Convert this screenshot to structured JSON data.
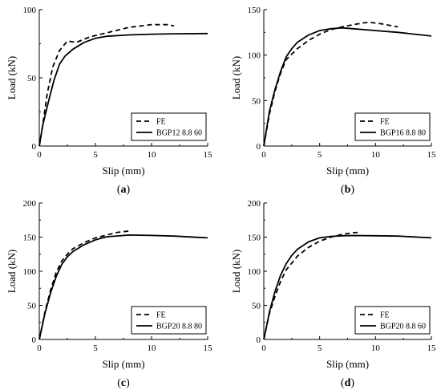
{
  "chart_data": [
    {
      "type": "line",
      "panel_label": "a",
      "xlabel": "Slip (mm)",
      "ylabel": "Load (kN)",
      "xlim": [
        0,
        15
      ],
      "ylim": [
        0,
        100
      ],
      "xticks": [
        "0",
        "5",
        "10",
        "15"
      ],
      "yticks": [
        "0",
        "50",
        "100"
      ],
      "legend_position": "bottom-right",
      "series": [
        {
          "name": "FE",
          "style": "dashed",
          "x": [
            0,
            0.3,
            0.7,
            1.2,
            1.8,
            2.5,
            3.3,
            4.5,
            6,
            8,
            10,
            11.5,
            12
          ],
          "y": [
            0,
            15,
            38,
            58,
            70,
            77,
            76,
            80,
            83,
            87,
            89,
            89,
            88
          ]
        },
        {
          "name": "BGP12 8.8 60",
          "style": "solid",
          "x": [
            0,
            0.3,
            0.8,
            1.3,
            1.8,
            2.3,
            3,
            4,
            5,
            6,
            8,
            10,
            12,
            15
          ],
          "y": [
            0,
            15,
            32,
            48,
            60,
            66,
            71,
            76,
            79,
            80.5,
            81.5,
            82,
            82.3,
            82.5
          ]
        }
      ]
    },
    {
      "type": "line",
      "panel_label": "b",
      "xlabel": "Slip (mm)",
      "ylabel": "Load (kN)",
      "xlim": [
        0,
        15
      ],
      "ylim": [
        0,
        150
      ],
      "xticks": [
        "0",
        "5",
        "10",
        "15"
      ],
      "yticks": [
        "0",
        "50",
        "100",
        "150"
      ],
      "legend_position": "bottom-right",
      "series": [
        {
          "name": "FE",
          "style": "dashed",
          "x": [
            0,
            0.5,
            1,
            1.5,
            2,
            3,
            4,
            5,
            6,
            7,
            8,
            9,
            9.5,
            10.5,
            12
          ],
          "y": [
            0,
            35,
            60,
            80,
            95,
            107,
            116,
            123,
            128,
            131,
            133.5,
            135.5,
            136,
            134.5,
            131
          ]
        },
        {
          "name": "BGP16 8.8 80",
          "style": "solid",
          "x": [
            0,
            0.5,
            1,
            1.5,
            2,
            2.5,
            3,
            4,
            5,
            6,
            7,
            8,
            10,
            12,
            15
          ],
          "y": [
            0,
            38,
            62,
            82,
            98,
            107,
            114,
            122,
            127,
            129,
            130,
            129,
            127,
            125,
            121
          ]
        }
      ]
    },
    {
      "type": "line",
      "panel_label": "c",
      "xlabel": "Slip (mm)",
      "ylabel": "Load (kN)",
      "xlim": [
        0,
        15
      ],
      "ylim": [
        0,
        200
      ],
      "xticks": [
        "0",
        "5",
        "10",
        "15"
      ],
      "yticks": [
        "0",
        "50",
        "100",
        "150",
        "200"
      ],
      "legend_position": "bottom-right",
      "series": [
        {
          "name": "FE",
          "style": "dashed",
          "x": [
            0,
            0.5,
            1,
            1.5,
            2,
            2.5,
            3,
            4,
            5,
            6,
            7,
            8
          ],
          "y": [
            0,
            40,
            72,
            98,
            115,
            125,
            133,
            142,
            149,
            153,
            157,
            159
          ]
        },
        {
          "name": "BGP20 8.8 80",
          "style": "solid",
          "x": [
            0,
            0.5,
            1,
            1.5,
            2,
            2.5,
            3,
            4,
            5,
            6,
            8,
            10,
            12,
            15
          ],
          "y": [
            0,
            38,
            68,
            92,
            110,
            121,
            129,
            139,
            146,
            150.5,
            153,
            152.5,
            151.5,
            149
          ]
        }
      ]
    },
    {
      "type": "line",
      "panel_label": "d",
      "xlabel": "Slip (mm)",
      "ylabel": "Load (kN)",
      "xlim": [
        0,
        15
      ],
      "ylim": [
        0,
        200
      ],
      "xticks": [
        "0",
        "5",
        "10",
        "15"
      ],
      "yticks": [
        "0",
        "50",
        "100",
        "150",
        "200"
      ],
      "legend_position": "bottom-right",
      "series": [
        {
          "name": "FE",
          "style": "dashed",
          "x": [
            0,
            0.5,
            1,
            1.5,
            2,
            3,
            4,
            5,
            6,
            7,
            8,
            8.5
          ],
          "y": [
            0,
            38,
            63,
            85,
            102,
            122,
            135,
            144,
            150,
            154,
            156.5,
            157
          ]
        },
        {
          "name": "BGP20 8.8 60",
          "style": "solid",
          "x": [
            0,
            0.5,
            1,
            1.5,
            2,
            2.5,
            3,
            4,
            5,
            6,
            7,
            8,
            10,
            12,
            15
          ],
          "y": [
            0,
            40,
            70,
            94,
            111,
            123,
            132,
            143,
            149,
            151,
            152,
            152.3,
            152,
            151.5,
            149
          ]
        }
      ]
    }
  ]
}
